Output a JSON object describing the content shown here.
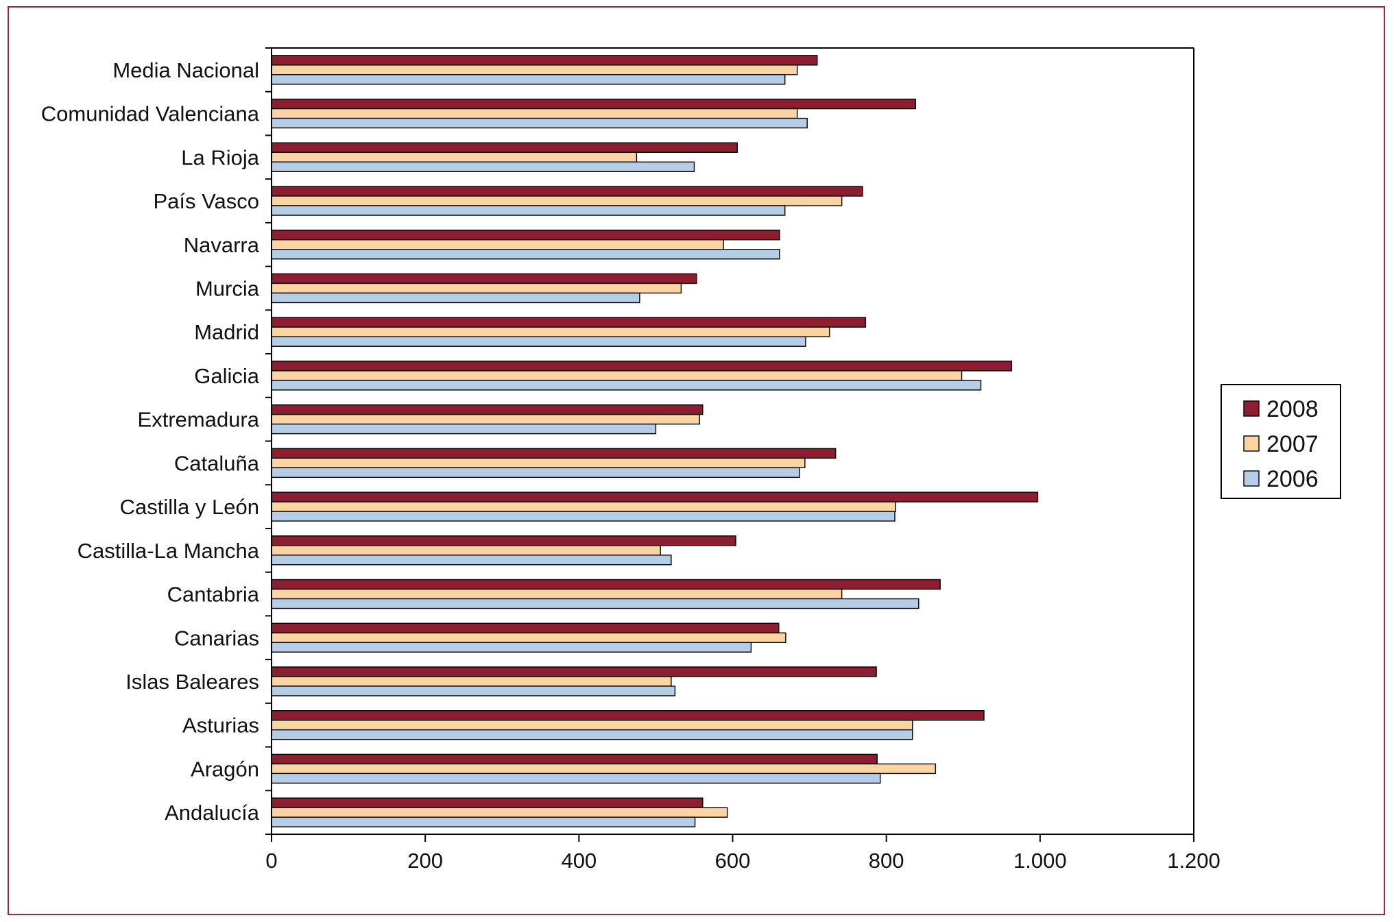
{
  "chart_data": {
    "type": "bar",
    "orientation": "horizontal",
    "categories": [
      "Media Nacional",
      "Comunidad Valenciana",
      "La Rioja",
      "País Vasco",
      "Navarra",
      "Murcia",
      "Madrid",
      "Galicia",
      "Extremadura",
      "Cataluña",
      "Castilla y León",
      "Castilla-La Mancha",
      "Cantabria",
      "Canarias",
      "Islas Baleares",
      "Asturias",
      "Aragón",
      "Andalucía"
    ],
    "series": [
      {
        "name": "2008",
        "color": "#8b1e30",
        "values": [
          710,
          838,
          606,
          769,
          661,
          553,
          773,
          963,
          561,
          734,
          997,
          604,
          870,
          660,
          787,
          927,
          788,
          561
        ]
      },
      {
        "name": "2007",
        "color": "#fbd4a3",
        "values": [
          684,
          684,
          475,
          742,
          588,
          533,
          726,
          898,
          557,
          694,
          812,
          506,
          742,
          669,
          520,
          834,
          864,
          593
        ]
      },
      {
        "name": "2006",
        "color": "#b6cde6",
        "values": [
          668,
          697,
          550,
          668,
          661,
          479,
          695,
          923,
          500,
          687,
          811,
          520,
          842,
          624,
          525,
          834,
          792,
          551
        ]
      }
    ],
    "xlim": [
      0,
      1200
    ],
    "xticks": [
      "0",
      "200",
      "400",
      "600",
      "800",
      "1.000",
      "1.200"
    ],
    "xtick_values": [
      0,
      200,
      400,
      600,
      800,
      1000,
      1200
    ],
    "legend": {
      "position": "right",
      "items": [
        "2008",
        "2007",
        "2006"
      ]
    },
    "grid": false
  }
}
